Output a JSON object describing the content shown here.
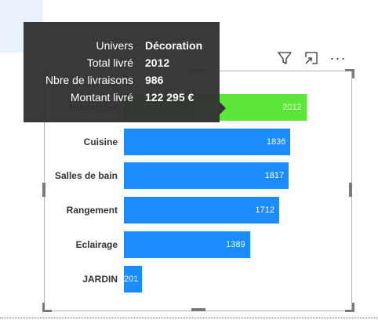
{
  "toolbar": {
    "filter_icon": "filter-icon",
    "focus_icon": "focus-mode-icon",
    "more_label": "···"
  },
  "colors": {
    "bar_default": "#1a8cff",
    "bar_highlight": "#5ce63a",
    "tooltip_bg": "#333333"
  },
  "tooltip": {
    "rows": [
      {
        "key": "Univers",
        "value": "Décoration"
      },
      {
        "key": "Total livré",
        "value": "2012"
      },
      {
        "key": "Nbre de livraisons",
        "value": "986"
      },
      {
        "key": "Montant livré",
        "value": "122 295 €"
      }
    ]
  },
  "chart_data": {
    "type": "bar",
    "orientation": "horizontal",
    "categories": [
      "Décoration",
      "Cuisine",
      "Salles de bain",
      "Rangement",
      "Eclairage",
      "JARDIN"
    ],
    "values": [
      2012,
      1836,
      1817,
      1712,
      1389,
      201
    ],
    "highlighted": "Décoration",
    "value_labels": [
      "2012",
      "1836",
      "1817",
      "1712",
      "1389",
      "201"
    ],
    "title": "",
    "xlabel": "",
    "ylabel": ""
  }
}
